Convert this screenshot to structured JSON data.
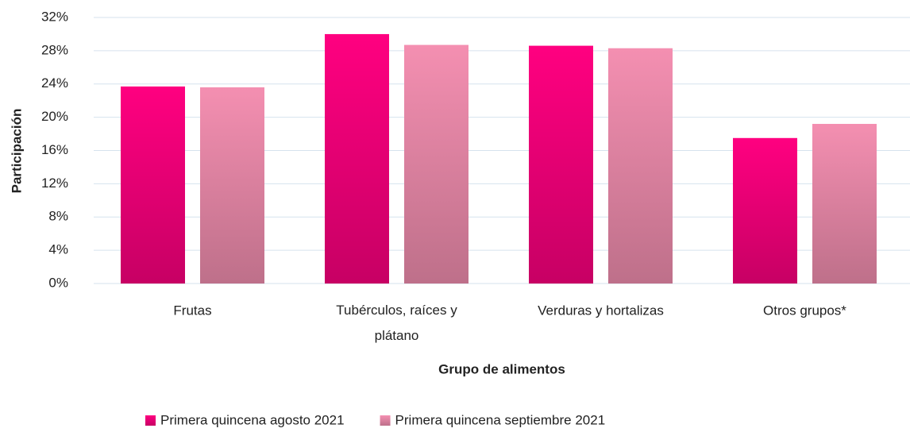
{
  "chart_data": {
    "type": "bar",
    "x_label": "Grupo de alimentos",
    "y_label": "Participación",
    "categories": [
      "Frutas",
      "Tubérculos, raíces y plátano",
      "Verduras y hortalizas",
      "Otros grupos*"
    ],
    "series": [
      {
        "name": "Primera quincena agosto 2021",
        "color": "#ff0080",
        "values": [
          23.7,
          30.0,
          28.6,
          17.5
        ]
      },
      {
        "name": "Primera quincena septiembre 2021",
        "color": "#f48fb1",
        "values": [
          23.6,
          28.7,
          28.3,
          19.2
        ]
      }
    ],
    "ylim": [
      0,
      32
    ],
    "yticks": [
      {
        "value": 0,
        "label": "0%"
      },
      {
        "value": 4,
        "label": "4%"
      },
      {
        "value": 8,
        "label": "8%"
      },
      {
        "value": 12,
        "label": "12%"
      },
      {
        "value": 16,
        "label": "16%"
      },
      {
        "value": 20,
        "label": "20%"
      },
      {
        "value": 24,
        "label": "24%"
      },
      {
        "value": 28,
        "label": "28%"
      },
      {
        "value": 32,
        "label": "32%"
      }
    ],
    "grid": true,
    "legend": "bottom"
  }
}
